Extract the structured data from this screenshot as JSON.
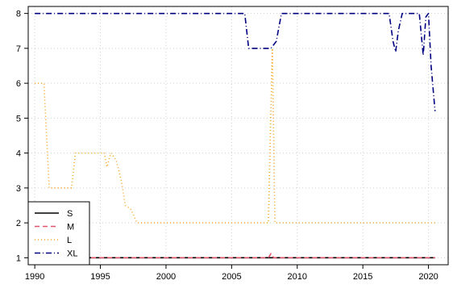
{
  "chart_data": {
    "type": "line",
    "title": "",
    "xlabel": "",
    "ylabel": "",
    "xlim": [
      1989.5,
      2021.5
    ],
    "ylim": [
      0.8,
      8.2
    ],
    "x_ticks": [
      1990,
      1995,
      2000,
      2005,
      2010,
      2015,
      2020
    ],
    "y_ticks": [
      1,
      2,
      3,
      4,
      5,
      6,
      7,
      8
    ],
    "grid": true,
    "legend_position": "bottom-left",
    "series": [
      {
        "name": "S",
        "color": "#000000",
        "dash": "solid",
        "points": [
          [
            1990.0,
            1
          ],
          [
            2020.5,
            1
          ]
        ]
      },
      {
        "name": "M",
        "color": "#DF536B",
        "dash": "dashed",
        "points": [
          [
            1990.0,
            1
          ],
          [
            2007.8,
            1
          ],
          [
            2008.0,
            1.12
          ],
          [
            2008.2,
            1
          ],
          [
            2020.5,
            1
          ]
        ]
      },
      {
        "name": "L",
        "color": "#F5A623",
        "dash": "dotted",
        "points": [
          [
            1990.0,
            6
          ],
          [
            1990.7,
            6
          ],
          [
            1991.1,
            3
          ],
          [
            1992.8,
            3
          ],
          [
            1993.1,
            4
          ],
          [
            1995.3,
            4
          ],
          [
            1995.5,
            3.6
          ],
          [
            1995.8,
            4
          ],
          [
            1996.2,
            3.8
          ],
          [
            1996.6,
            3.2
          ],
          [
            1996.9,
            2.5
          ],
          [
            1997.3,
            2.4
          ],
          [
            1997.8,
            2
          ],
          [
            2007.8,
            2
          ],
          [
            2008.1,
            7
          ],
          [
            2008.3,
            2
          ],
          [
            2020.5,
            2
          ]
        ]
      },
      {
        "name": "XL",
        "color": "#000080",
        "dash": "dashdot",
        "points": [
          [
            1990.0,
            8
          ],
          [
            2006.0,
            8
          ],
          [
            2006.3,
            7
          ],
          [
            2007.6,
            7
          ],
          [
            2008.0,
            7
          ],
          [
            2008.4,
            7.2
          ],
          [
            2008.8,
            8
          ],
          [
            2017.0,
            8
          ],
          [
            2017.3,
            7.2
          ],
          [
            2017.5,
            6.9
          ],
          [
            2017.7,
            7.5
          ],
          [
            2018.0,
            8
          ],
          [
            2019.3,
            8
          ],
          [
            2019.6,
            6.8
          ],
          [
            2019.8,
            7.9
          ],
          [
            2020.0,
            8
          ],
          [
            2020.2,
            6.5
          ],
          [
            2020.5,
            5.2
          ]
        ]
      }
    ]
  }
}
